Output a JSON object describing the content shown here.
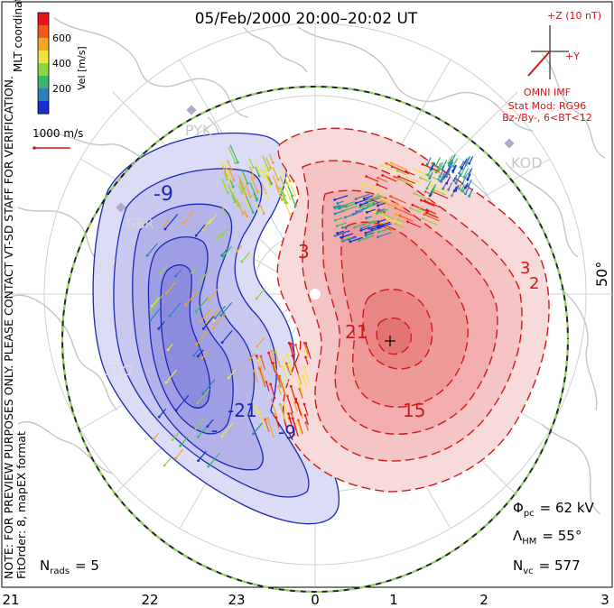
{
  "title": "05/Feb/2000 20:00–20:02 UT",
  "colorbar": {
    "coords_label": "MLT coordinates",
    "unit_label": "Vel [m/s]",
    "ticks": [
      "600",
      "400",
      "200"
    ],
    "colors": [
      "#e8141c",
      "#f05a1e",
      "#f5a623",
      "#f2e43a",
      "#8cd640",
      "#3ab86a",
      "#2f7fb8",
      "#1a2fd0"
    ]
  },
  "scale_vector": {
    "label": "1000 m/s"
  },
  "imf": {
    "z_label": "+Z (10 nT)",
    "y_label": "+Y",
    "source": "OMNI IMF",
    "model_line1": "Stat Mod: RG96",
    "model_line2": "Bz-/By-, 6<BT<12",
    "color": "#d01818"
  },
  "preview_note": "NOTE: FOR PREVIEW PURPOSES ONLY. PLEASE CONTACT VT-SD STAFF FOR VERIFICATION.",
  "fit_note": "FitOrder: 8, mapEX format",
  "stations": [
    "PYK",
    "KOD",
    "STO",
    "GBR"
  ],
  "contour_labels": {
    "neg_a": "-9",
    "neg_b": "-21",
    "neg_c": "-9",
    "neg_d": "-",
    "pos_a": "3",
    "pos_b": "21",
    "pos_c": "15",
    "pos_d": "3",
    "pos_e": "2"
  },
  "lat_label": "50°",
  "stats": {
    "phi_pc_symbol": "Φ",
    "phi_pc_sub": "pc",
    "phi_pc_value": "= 62 kV",
    "lambda_symbol": "Λ",
    "lambda_sub": "HM",
    "lambda_value": "= 55°",
    "n_vc_symbol": "N",
    "n_vc_sub": "vc",
    "n_vc_value": "= 577",
    "n_rads_symbol": "N",
    "n_rads_sub": "rads",
    "n_rads_value": "= 5"
  },
  "mlt_ticks": [
    "21",
    "22",
    "23",
    "0",
    "1",
    "2",
    "3"
  ],
  "colors": {
    "negative_fill": "#b8b8ee",
    "positive_fill": "#f4a3a3",
    "negative_line": "#1a28b8",
    "positive_line": "#d01818",
    "boundary": "#8fd85a",
    "land": "#c8c8c8"
  }
}
